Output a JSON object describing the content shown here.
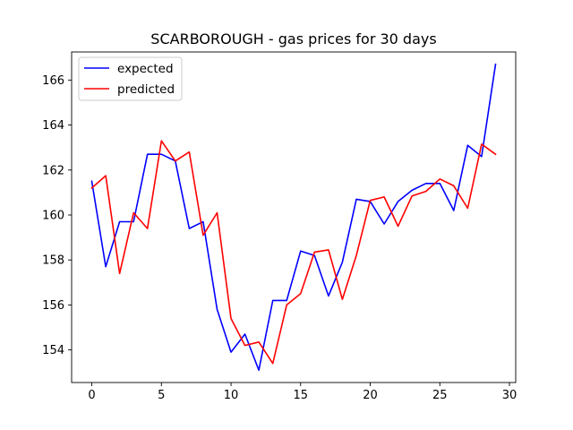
{
  "chart_data": {
    "type": "line",
    "title": "SCARBOROUGH - gas prices for 30 days",
    "xlabel": "",
    "ylabel": "",
    "xlim": [
      -1.45,
      30.45
    ],
    "ylim": [
      152.55,
      167.25
    ],
    "x_ticks": [
      0,
      5,
      10,
      15,
      20,
      25,
      30
    ],
    "y_ticks": [
      154,
      156,
      158,
      160,
      162,
      164,
      166
    ],
    "grid": false,
    "legend_position": "top-left",
    "x": [
      0,
      1,
      2,
      3,
      4,
      5,
      6,
      7,
      8,
      9,
      10,
      11,
      12,
      13,
      14,
      15,
      16,
      17,
      18,
      19,
      20,
      21,
      22,
      23,
      24,
      25,
      26,
      27,
      28,
      29
    ],
    "series": [
      {
        "name": "expected",
        "color": "#0000ff",
        "values": [
          161.5,
          157.7,
          159.7,
          159.7,
          162.7,
          162.7,
          162.4,
          159.4,
          159.7,
          155.8,
          153.9,
          154.7,
          153.1,
          156.2,
          156.2,
          158.4,
          158.2,
          156.4,
          157.9,
          160.7,
          160.6,
          159.6,
          160.6,
          161.1,
          161.4,
          161.4,
          160.2,
          163.1,
          162.6,
          166.7
        ]
      },
      {
        "name": "predicted",
        "color": "#ff0000",
        "values": [
          161.2,
          161.75,
          157.4,
          160.1,
          159.4,
          163.3,
          162.4,
          162.8,
          159.1,
          160.1,
          155.4,
          154.2,
          154.35,
          153.4,
          156.0,
          156.5,
          158.35,
          158.45,
          156.25,
          158.2,
          160.65,
          160.8,
          159.5,
          160.85,
          161.05,
          161.6,
          161.3,
          160.3,
          163.15,
          162.7
        ]
      }
    ]
  }
}
